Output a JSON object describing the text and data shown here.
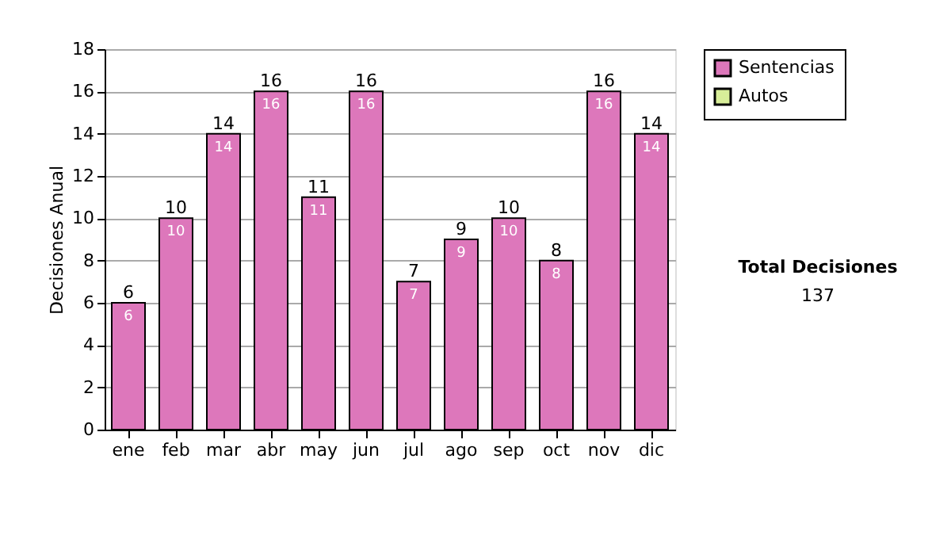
{
  "chart_data": {
    "type": "bar",
    "stacked": true,
    "ylabel": "Decisiones Anual",
    "categories": [
      "ene",
      "feb",
      "mar",
      "abr",
      "may",
      "jun",
      "jul",
      "ago",
      "sep",
      "oct",
      "nov",
      "dic"
    ],
    "series": [
      {
        "name": "Sentencias",
        "color": "#dd77bb",
        "values": [
          6,
          10,
          14,
          16,
          11,
          16,
          7,
          9,
          10,
          8,
          16,
          14
        ],
        "value_labels": [
          "6",
          "10",
          "14",
          "16",
          "11",
          "16",
          "7",
          "9",
          "10",
          "8",
          "16",
          "14"
        ]
      },
      {
        "name": "Autos",
        "color": "#d8ee99",
        "values": [
          0,
          0,
          0,
          0,
          0,
          0,
          0,
          0,
          0,
          0,
          0,
          0
        ]
      }
    ],
    "totals": [
      "6",
      "10",
      "14",
      "16",
      "11",
      "16",
      "7",
      "9",
      "10",
      "8",
      "16",
      "14"
    ],
    "ylim": [
      0,
      18
    ],
    "yticks": [
      0,
      2,
      4,
      6,
      8,
      10,
      12,
      14,
      16,
      18
    ],
    "grid": "y",
    "legend": "right",
    "annotations": [
      "Total Decisiones",
      "137"
    ]
  }
}
